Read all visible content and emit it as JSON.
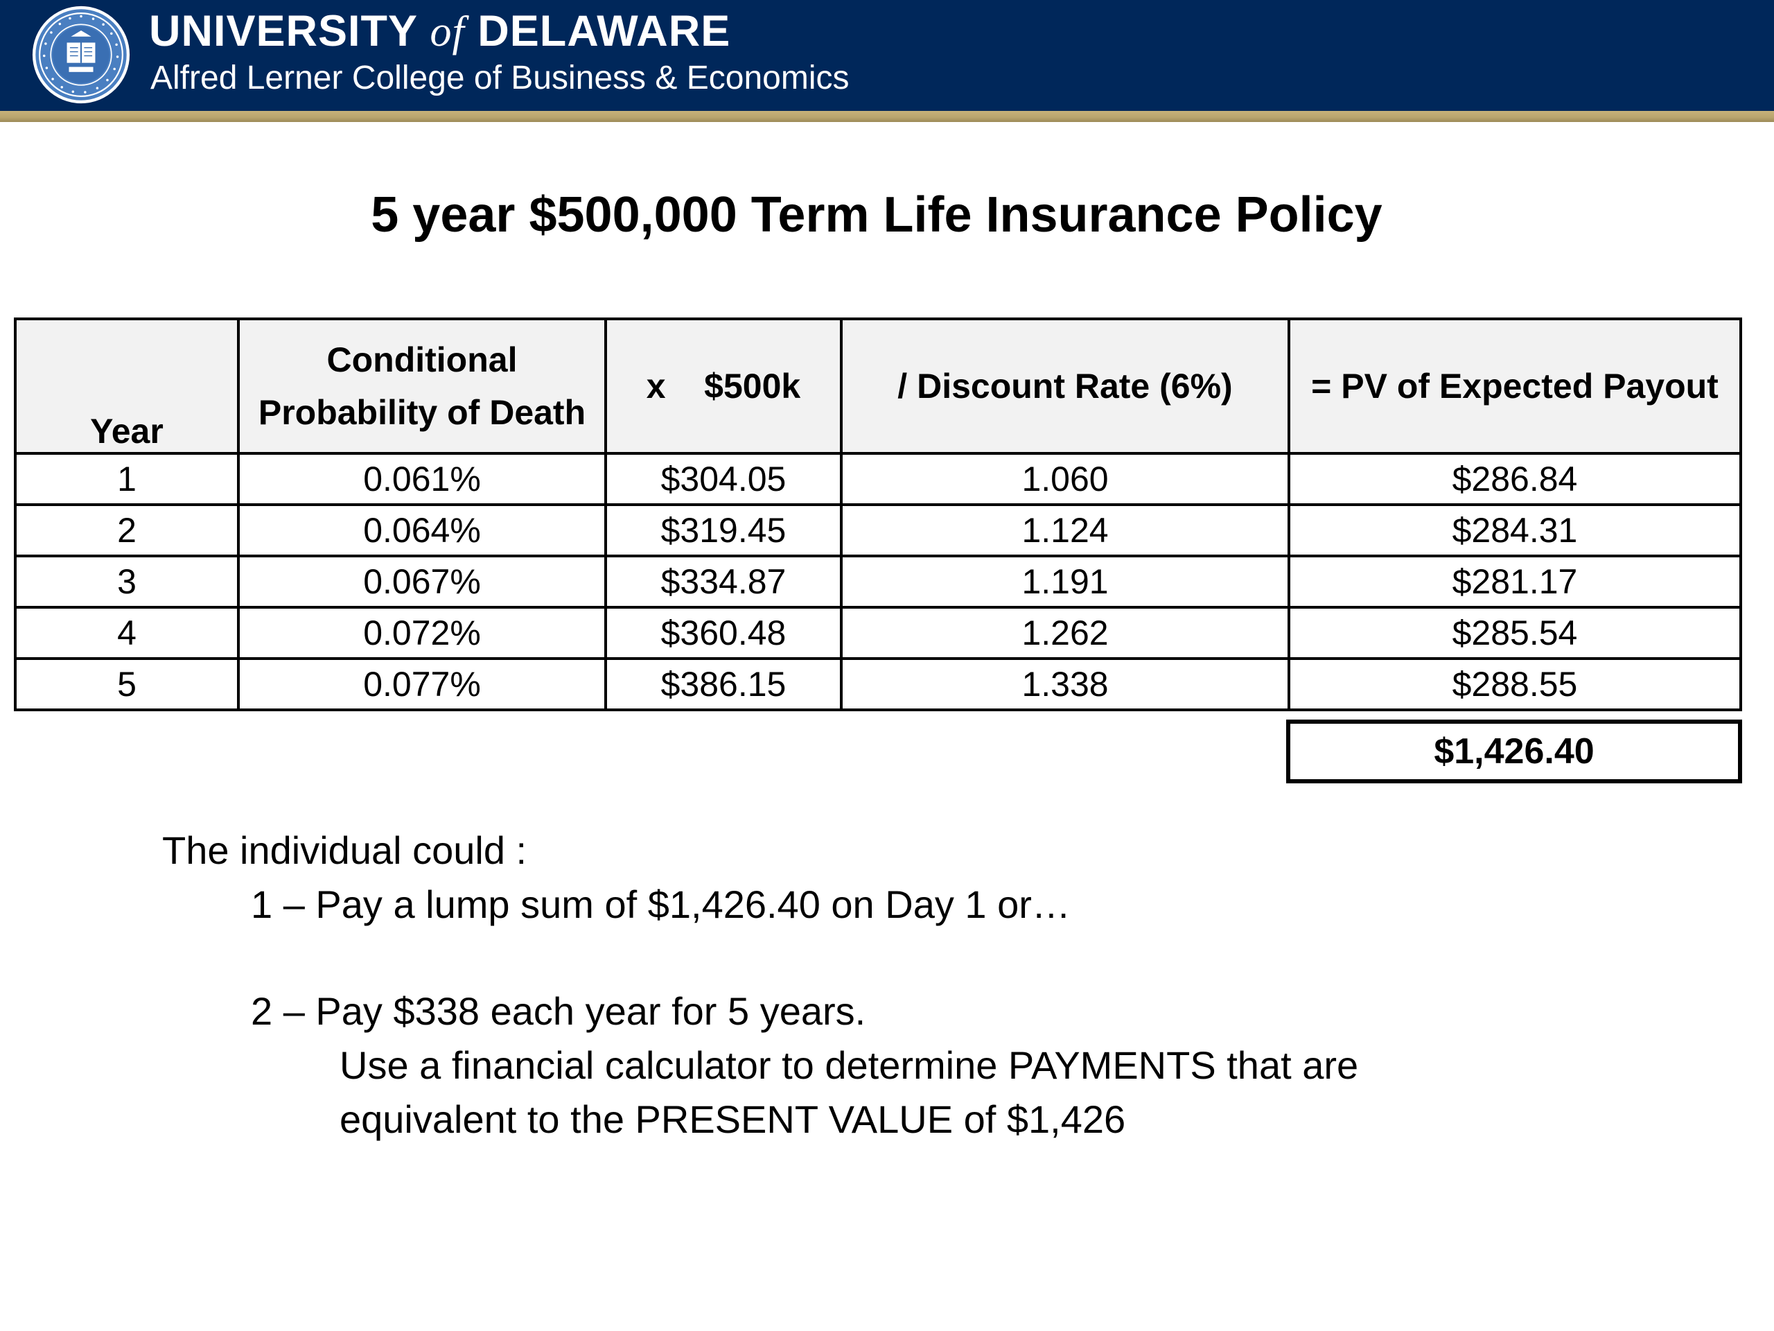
{
  "header": {
    "university_pre": "UNIVERSITY",
    "university_of": "of",
    "university_post": "DELAWARE",
    "college": "Alfred Lerner College of Business & Economics",
    "colors": {
      "banner": "#00275a",
      "stripe": "#c7b27a"
    },
    "seal_icon": "university-seal-icon"
  },
  "slide": {
    "title": "5 year $500,000 Term Life Insurance Policy"
  },
  "table": {
    "headers": {
      "year": "Year",
      "prob_line1": "Conditional",
      "prob_line2": "Probability of Death",
      "times": "x    $500k",
      "discount": "/  Discount Rate (6%)",
      "pv": "= PV of Expected Payout"
    },
    "rows": [
      {
        "year": "1",
        "prob": "0.061%",
        "amount": "$304.05",
        "rate": "1.060",
        "pv": "$286.84"
      },
      {
        "year": "2",
        "prob": "0.064%",
        "amount": "$319.45",
        "rate": "1.124",
        "pv": "$284.31"
      },
      {
        "year": "3",
        "prob": "0.067%",
        "amount": "$334.87",
        "rate": "1.191",
        "pv": "$281.17"
      },
      {
        "year": "4",
        "prob": "0.072%",
        "amount": "$360.48",
        "rate": "1.262",
        "pv": "$285.54"
      },
      {
        "year": "5",
        "prob": "0.077%",
        "amount": "$386.15",
        "rate": "1.338",
        "pv": "$288.55"
      }
    ],
    "total": "$1,426.40"
  },
  "body": {
    "intro": "The individual could :",
    "option1": "1 – Pay a lump sum of $1,426.40 on Day 1 or…",
    "option2": "2 – Pay $338 each year for 5 years.",
    "note_line1": "Use a financial calculator to determine PAYMENTS that are",
    "note_line2": "equivalent to the PRESENT VALUE of $1,426"
  }
}
